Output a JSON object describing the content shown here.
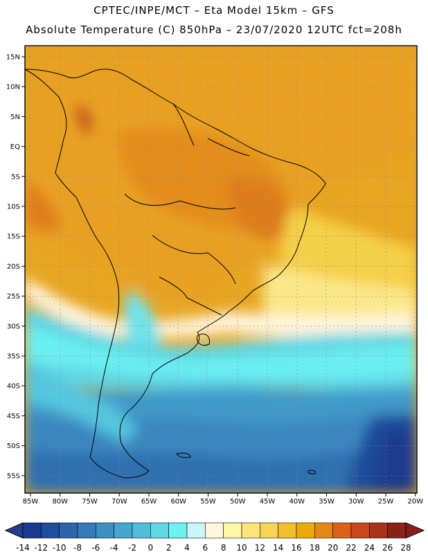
{
  "header": {
    "line1": "CPTEC/INPE/MCT –  Eta Model 15km – GFS",
    "line2": "Absolute Temperature (C) 850hPa – 23/07/2020 12UTC fct=208h"
  },
  "map": {
    "lat_ticks": [
      "15N",
      "10N",
      "5N",
      "EQ",
      "5S",
      "10S",
      "15S",
      "20S",
      "25S",
      "30S",
      "35S",
      "40S",
      "45S",
      "50S",
      "55S"
    ],
    "lon_ticks": [
      "85W",
      "80W",
      "75W",
      "70W",
      "65W",
      "60W",
      "55W",
      "50W",
      "45W",
      "40W",
      "35W",
      "30W",
      "25W",
      "20W"
    ]
  },
  "colorbar": {
    "labels": [
      "-14",
      "-12",
      "-10",
      "-8",
      "-6",
      "-4",
      "-2",
      "0",
      "2",
      "4",
      "6",
      "8",
      "10",
      "12",
      "14",
      "16",
      "18",
      "20",
      "22",
      "24",
      "26",
      "28"
    ],
    "colors": [
      "#1a3a8e",
      "#1f4f9c",
      "#2a66ad",
      "#3479b8",
      "#3d8fc4",
      "#47a6cf",
      "#52bdd9",
      "#60d8e6",
      "#6bf3f3",
      "#c9f5fb",
      "#fff7e0",
      "#fdf6a5",
      "#fbe57a",
      "#f7d356",
      "#f1bf2c",
      "#ecaa0a",
      "#e48719",
      "#dc621c",
      "#c9481b",
      "#a8321a",
      "#862517"
    ]
  }
}
